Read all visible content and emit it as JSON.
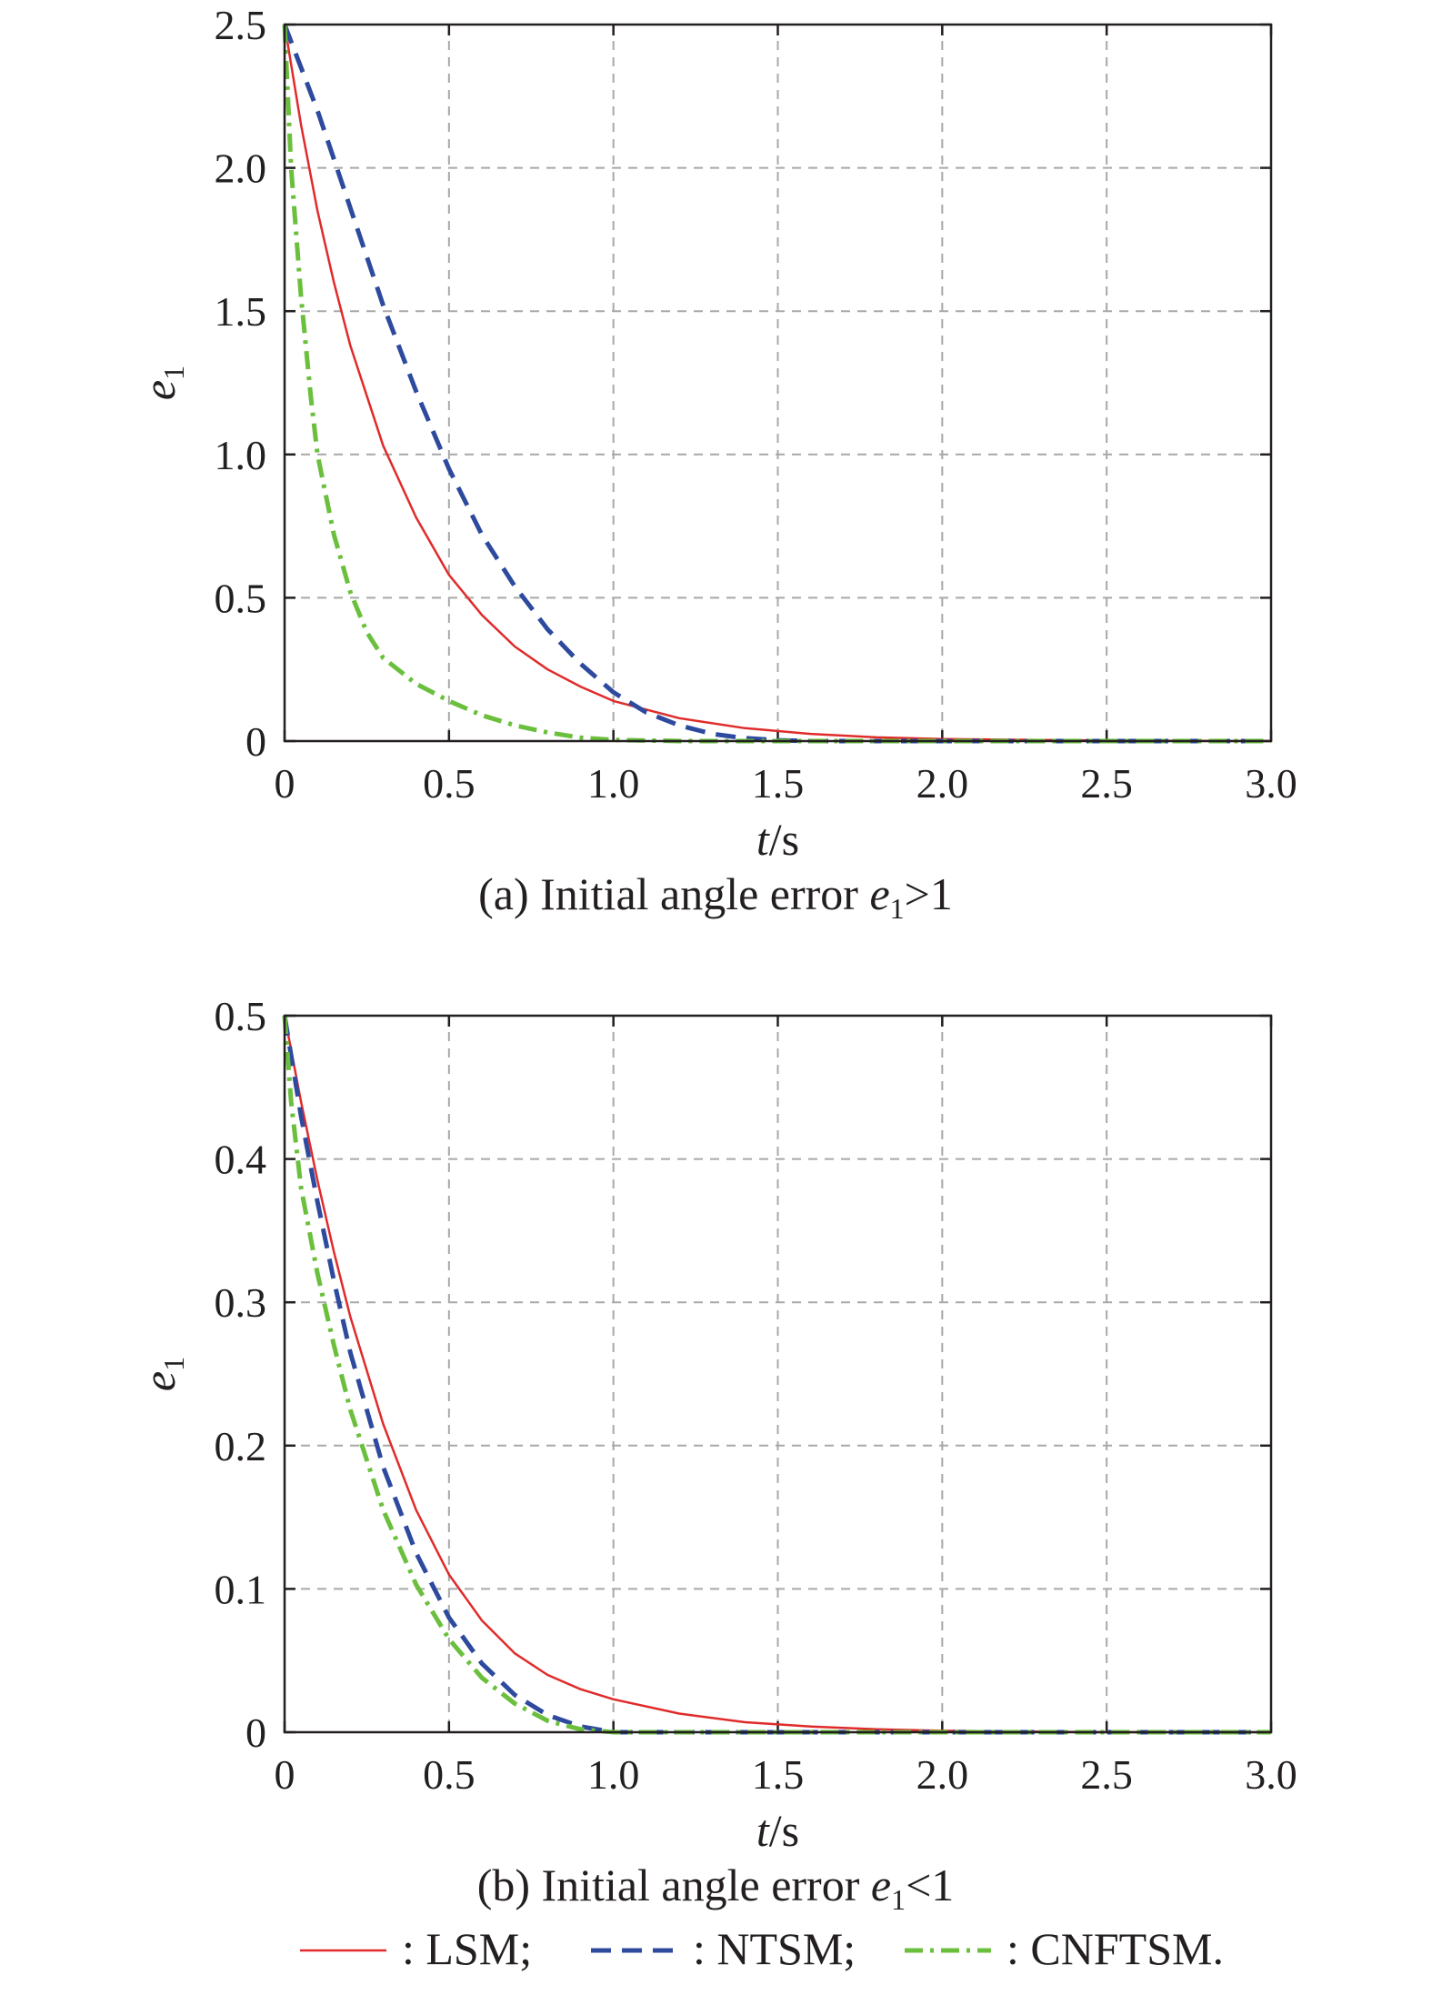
{
  "chart_data": [
    {
      "type": "line",
      "caption_prefix": "(a) Initial angle error ",
      "caption_var": "e",
      "caption_sub": "1",
      "caption_suffix": ">1",
      "xlabel_var": "t",
      "xlabel_unit": "/s",
      "ylabel_var": "e",
      "ylabel_sub": "1",
      "xlim": [
        0,
        3.0
      ],
      "ylim": [
        0,
        2.5
      ],
      "xticks": [
        "0",
        "0.5",
        "1.0",
        "1.5",
        "2.0",
        "2.5",
        "3.0"
      ],
      "yticks": [
        "0",
        "0.5",
        "1.0",
        "1.5",
        "2.0",
        "2.5"
      ],
      "grid": true,
      "series": [
        {
          "name": "LSM",
          "color": "#e02b2b",
          "style": "solid",
          "x": [
            0,
            0.05,
            0.1,
            0.15,
            0.2,
            0.3,
            0.4,
            0.5,
            0.6,
            0.7,
            0.8,
            0.9,
            1.0,
            1.2,
            1.4,
            1.6,
            1.8,
            2.0,
            2.5,
            3.0
          ],
          "y": [
            2.5,
            2.15,
            1.85,
            1.6,
            1.38,
            1.03,
            0.78,
            0.58,
            0.44,
            0.33,
            0.25,
            0.19,
            0.14,
            0.08,
            0.045,
            0.025,
            0.013,
            0.007,
            0.002,
            0
          ]
        },
        {
          "name": "NTSM",
          "color": "#2e4a9e",
          "style": "dashed",
          "x": [
            0,
            0.05,
            0.1,
            0.15,
            0.2,
            0.3,
            0.4,
            0.5,
            0.6,
            0.7,
            0.8,
            0.9,
            1.0,
            1.1,
            1.2,
            1.3,
            1.4,
            1.5,
            1.6,
            2.0,
            2.5,
            3.0
          ],
          "y": [
            2.5,
            2.35,
            2.2,
            2.03,
            1.86,
            1.52,
            1.22,
            0.95,
            0.72,
            0.54,
            0.39,
            0.27,
            0.17,
            0.1,
            0.055,
            0.025,
            0.01,
            0.003,
            0,
            0,
            0,
            0
          ]
        },
        {
          "name": "CNFTSM",
          "color": "#6abf3d",
          "style": "dashdot",
          "x": [
            0,
            0.02,
            0.05,
            0.08,
            0.1,
            0.15,
            0.2,
            0.25,
            0.3,
            0.4,
            0.5,
            0.6,
            0.7,
            0.8,
            0.9,
            1.0,
            1.2,
            1.5,
            2.0,
            2.5,
            3.0
          ],
          "y": [
            2.5,
            2.0,
            1.55,
            1.2,
            1.0,
            0.72,
            0.52,
            0.38,
            0.29,
            0.2,
            0.14,
            0.09,
            0.055,
            0.03,
            0.012,
            0.004,
            0,
            0,
            0,
            0,
            0
          ]
        }
      ]
    },
    {
      "type": "line",
      "caption_prefix": "(b) Initial angle error ",
      "caption_var": "e",
      "caption_sub": "1",
      "caption_suffix": "<1",
      "xlabel_var": "t",
      "xlabel_unit": "/s",
      "ylabel_var": "e",
      "ylabel_sub": "1",
      "xlim": [
        0,
        3.0
      ],
      "ylim": [
        0,
        0.5
      ],
      "xticks": [
        "0",
        "0.5",
        "1.0",
        "1.5",
        "2.0",
        "2.5",
        "3.0"
      ],
      "yticks": [
        "0",
        "0.1",
        "0.2",
        "0.3",
        "0.4",
        "0.5"
      ],
      "grid": true,
      "series": [
        {
          "name": "LSM",
          "color": "#e02b2b",
          "style": "solid",
          "x": [
            0,
            0.05,
            0.1,
            0.15,
            0.2,
            0.3,
            0.4,
            0.5,
            0.6,
            0.7,
            0.8,
            0.9,
            1.0,
            1.2,
            1.4,
            1.6,
            1.8,
            2.0,
            2.5,
            3.0
          ],
          "y": [
            0.5,
            0.44,
            0.385,
            0.335,
            0.29,
            0.215,
            0.155,
            0.11,
            0.078,
            0.055,
            0.04,
            0.03,
            0.023,
            0.013,
            0.007,
            0.004,
            0.002,
            0.001,
            0,
            0
          ]
        },
        {
          "name": "NTSM",
          "color": "#2e4a9e",
          "style": "dashed",
          "x": [
            0,
            0.05,
            0.1,
            0.15,
            0.2,
            0.3,
            0.4,
            0.5,
            0.6,
            0.7,
            0.8,
            0.9,
            1.0,
            1.5,
            2.0,
            2.5,
            3.0
          ],
          "y": [
            0.5,
            0.43,
            0.37,
            0.315,
            0.265,
            0.185,
            0.125,
            0.08,
            0.048,
            0.026,
            0.012,
            0.004,
            0,
            0,
            0,
            0,
            0
          ]
        },
        {
          "name": "CNFTSM",
          "color": "#6abf3d",
          "style": "dashdot",
          "x": [
            0,
            0.02,
            0.05,
            0.1,
            0.15,
            0.2,
            0.3,
            0.4,
            0.5,
            0.6,
            0.7,
            0.8,
            0.9,
            1.0,
            1.5,
            2.0,
            2.5,
            3.0
          ],
          "y": [
            0.5,
            0.44,
            0.38,
            0.32,
            0.27,
            0.225,
            0.155,
            0.103,
            0.065,
            0.038,
            0.02,
            0.008,
            0.002,
            0,
            0,
            0,
            0,
            0
          ]
        }
      ]
    }
  ],
  "legend": {
    "placement": "bottom",
    "items": [
      {
        "label": ": LSM;",
        "color": "#e02b2b",
        "style": "solid"
      },
      {
        "label": ": NTSM;",
        "color": "#2e4a9e",
        "style": "dashed"
      },
      {
        "label": ": CNFTSM.",
        "color": "#6abf3d",
        "style": "dashdot"
      }
    ]
  }
}
